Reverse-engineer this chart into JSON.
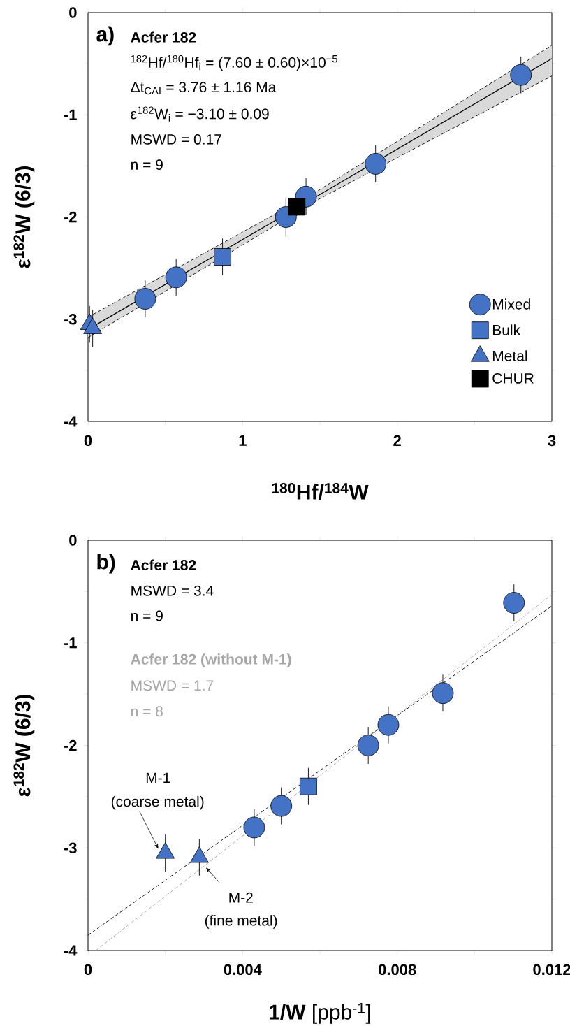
{
  "chart_data": [
    {
      "type": "scatter",
      "title": "a)",
      "xlabel": "$^{180}$Hf/$^{184}$W",
      "ylabel": "ε$^{182}$W (6/3)",
      "xlim": [
        0,
        3
      ],
      "ylim": [
        -4,
        0
      ],
      "xticks": [
        0,
        1,
        2,
        3
      ],
      "yticks": [
        -4,
        -3,
        -2,
        -1,
        0
      ],
      "legend": "bottom right",
      "annotations": [
        "Acfer 182",
        "$^{182}$Hf/$^{180}$Hf$_{i}$ = (7.60 ± 0.60)×10$^{−5}$",
        "Δt$_{CAI}$ = 3.76 ± 1.16 Ma",
        "ε$^{182}$W$_{i}$ = −3.10 ± 0.09",
        "MSWD = 0.17",
        "n = 9"
      ],
      "series": [
        {
          "type": "line",
          "color": "#000000",
          "marker": "none",
          "line_style": "solid",
          "x": [
            0,
            1.5,
            3
          ],
          "values": [
            -3.1,
            -1.78,
            -0.45
          ],
          "lower": [
            -3.18,
            -1.82,
            -0.62
          ],
          "upper": [
            -2.98,
            -1.73,
            -0.32
          ]
        },
        {
          "type": "line",
          "color": "#000000",
          "marker": "none",
          "line_style": "dashed",
          "x": [
            0,
            1.5,
            3
          ],
          "values": [
            -2.98,
            -1.73,
            -0.32
          ]
        },
        {
          "type": "line",
          "color": "#000000",
          "marker": "none",
          "line_style": "dashed",
          "x": [
            0,
            1.5,
            3
          ],
          "values": [
            -3.18,
            -1.82,
            -0.62
          ]
        },
        {
          "name": "Mixed",
          "color": "#4472c4",
          "marker": "circle",
          "x": [
            0.37,
            0.57,
            1.28,
            1.41,
            1.86,
            2.8
          ],
          "values": [
            -2.8,
            -2.59,
            -2.0,
            -1.8,
            -1.48,
            -0.61
          ],
          "errors": [
            0.18,
            0.18,
            0.18,
            0.18,
            0.18,
            0.18
          ]
        },
        {
          "name": "Bulk",
          "color": "#4472c4",
          "marker": "square",
          "x": [
            0.87
          ],
          "values": [
            -2.39
          ],
          "errors": [
            0.18
          ]
        },
        {
          "name": "Metal",
          "color": "#4472c4",
          "marker": "triangle",
          "x": [
            0.01,
            0.03
          ],
          "values": [
            -3.05,
            -3.09
          ],
          "errors": [
            0.18,
            0.18
          ]
        },
        {
          "name": "CHUR",
          "color": "#000000",
          "marker": "square",
          "x": [
            1.35
          ],
          "values": [
            -1.9
          ],
          "errors": [
            0.09
          ]
        }
      ]
    },
    {
      "type": "scatter",
      "title": "b)",
      "xlabel": "**1/W** [ppb$^{-1}$]",
      "ylabel": "ε$^{182}$W (6/3)",
      "xlim": [
        0,
        0.012
      ],
      "ylim": [
        -4,
        0
      ],
      "xticks": [
        0,
        0.004,
        0.008,
        0.012
      ],
      "yticks": [
        -4,
        -3,
        -2,
        -1,
        0
      ],
      "annotations": [
        "Acfer 182",
        "MSWD = 3.4",
        "n = 9",
        "Acfer 182 (without M-1)",
        "MSWD = 1.7",
        "n = 8",
        "M-1",
        {
          "text": "(coarse metal)",
          "x": 0.002,
          "y": -3.05
        },
        {
          "text": "M-2",
          "x": 0.00305,
          "y": -3.19
        },
        "(fine metal)"
      ],
      "series": [
        {
          "type": "line",
          "color": "#000000",
          "marker": "none",
          "line_style": "dashed",
          "x": [
            0,
            0.012
          ],
          "values": [
            -3.85,
            -0.64
          ]
        },
        {
          "type": "line",
          "color": "#a6a6a6",
          "marker": "none",
          "line_style": "dashed",
          "x": [
            0.0002,
            0.012
          ],
          "values": [
            -4,
            -0.53
          ]
        },
        {
          "color": "#4472c4",
          "marker": "circle",
          "x": [
            0.0043,
            0.005,
            0.00725,
            0.00777,
            0.00918,
            0.01102
          ],
          "values": [
            -2.8,
            -2.59,
            -2.0,
            -1.8,
            -1.49,
            -0.61
          ],
          "errors": [
            0.18,
            0.18,
            0.18,
            0.18,
            0.18,
            0.18
          ]
        },
        {
          "color": "#4472c4",
          "marker": "square",
          "x": [
            0.0057
          ],
          "values": [
            -2.4
          ],
          "errors": [
            0.18
          ]
        },
        {
          "color": "#4472c4",
          "marker": "triangle",
          "x": [
            0.002,
            0.00288
          ],
          "values": [
            -3.05,
            -3.09
          ],
          "errors": [
            0.18,
            0.18
          ]
        }
      ]
    }
  ]
}
